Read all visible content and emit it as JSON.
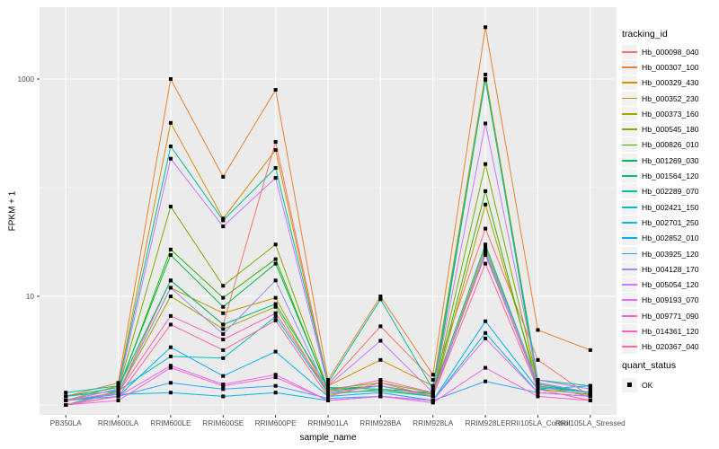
{
  "colors": {
    "panel_bg": "#EBEBEB",
    "grid": "#FFFFFF",
    "key_bg": "#F2F2F2",
    "tick_text": "#4D4D4D",
    "axis_tick": "#333333",
    "point": "#000000"
  },
  "legend": {
    "tracking_id": {
      "title": "tracking_id"
    },
    "quant_status": {
      "title": "quant_status",
      "items": [
        {
          "label": "OK",
          "marker": "black-square",
          "marker_color": "#000000"
        }
      ]
    }
  },
  "chart_data": {
    "type": "line",
    "title": "",
    "xlabel": "sample_name",
    "ylabel": "FPKM + 1",
    "y_scale": "log10",
    "y_tick_values": [
      1000,
      10
    ],
    "y_minor_values": [
      100,
      1
    ],
    "ylim": [
      1,
      3500
    ],
    "grid": true,
    "legend_position": "right",
    "point_marker": "black square (quant_status OK) on every data point",
    "categories": [
      "PB350LA",
      "RRIM600LA",
      "RRIM600LE",
      "RRIM600SE",
      "RRIM600PE",
      "RRIM901LA",
      "RRIM928BA",
      "RRIM928LA",
      "RRIM928LE",
      "RRII105LA_Control",
      "RRII105LA_Stressed"
    ],
    "series": [
      {
        "name": "Hb_000098_040",
        "color": "#F8766D",
        "values": [
          1.1,
          1.3,
          14,
          5.5,
          264,
          1.55,
          5.3,
          1.7,
          42,
          2.6,
          1.2
        ]
      },
      {
        "name": "Hb_000307_100",
        "color": "#EA8331",
        "values": [
          1.2,
          1.6,
          1000,
          126,
          795,
          1.7,
          10,
          1.9,
          3000,
          4.9,
          3.2
        ]
      },
      {
        "name": "Hb_000329_430",
        "color": "#D89000",
        "values": [
          1.1,
          1.5,
          395,
          52,
          222,
          1.5,
          2.6,
          1.5,
          1100,
          1.7,
          1.4
        ]
      },
      {
        "name": "Hb_000352_230",
        "color": "#C09B00",
        "values": [
          1.0,
          1.3,
          12,
          7.0,
          9.7,
          1.3,
          1.5,
          1.2,
          70,
          1.6,
          1.3
        ]
      },
      {
        "name": "Hb_000373_160",
        "color": "#A3A500",
        "values": [
          1.0,
          1.3,
          10,
          5.0,
          8.0,
          1.25,
          1.4,
          1.2,
          28,
          1.5,
          1.2
        ]
      },
      {
        "name": "Hb_000545_180",
        "color": "#7CAE00",
        "values": [
          1.1,
          1.4,
          67,
          12.5,
          30,
          1.4,
          1.6,
          1.3,
          165,
          1.6,
          1.3
        ]
      },
      {
        "name": "Hb_000826_010",
        "color": "#39B600",
        "values": [
          1.0,
          1.35,
          27,
          9.7,
          22,
          1.35,
          1.5,
          1.25,
          93,
          1.4,
          1.25
        ]
      },
      {
        "name": "Hb_001269_030",
        "color": "#00BB4E",
        "values": [
          1.1,
          1.4,
          24,
          8.0,
          20,
          1.4,
          1.5,
          1.2,
          1000,
          1.5,
          1.3
        ]
      },
      {
        "name": "Hb_001564_120",
        "color": "#00BF7D",
        "values": [
          1.2,
          1.45,
          14,
          5.5,
          8.5,
          1.45,
          1.4,
          1.3,
          30,
          1.55,
          1.3
        ]
      },
      {
        "name": "Hb_002289_070",
        "color": "#00C1A3",
        "values": [
          1.3,
          1.5,
          240,
          50,
          152,
          1.6,
          9.4,
          1.4,
          980,
          1.7,
          1.5
        ]
      },
      {
        "name": "Hb_002421_150",
        "color": "#00BFC4",
        "values": [
          1.2,
          1.35,
          2.8,
          2.7,
          6.5,
          1.3,
          1.35,
          1.2,
          25,
          1.45,
          1.3
        ]
      },
      {
        "name": "Hb_002701_250",
        "color": "#00BAE0",
        "values": [
          1.1,
          1.25,
          1.3,
          1.2,
          1.3,
          1.1,
          1.2,
          1.1,
          4.6,
          1.3,
          1.2
        ]
      },
      {
        "name": "Hb_002852_010",
        "color": "#00B0F6",
        "values": [
          1.0,
          1.2,
          3.4,
          1.85,
          3.1,
          1.2,
          1.3,
          1.1,
          5.9,
          1.4,
          1.5
        ]
      },
      {
        "name": "Hb_003925_120",
        "color": "#35A2FF",
        "values": [
          1.1,
          1.2,
          1.6,
          1.4,
          1.5,
          1.15,
          1.2,
          1.1,
          1.65,
          1.3,
          1.2
        ]
      },
      {
        "name": "Hb_004128_170",
        "color": "#9590FF",
        "values": [
          1.0,
          1.3,
          12,
          4.5,
          14,
          1.3,
          1.5,
          1.2,
          26,
          1.6,
          1.3
        ]
      },
      {
        "name": "Hb_005054_120",
        "color": "#C77CFF",
        "values": [
          1.1,
          1.4,
          185,
          44,
          123,
          1.5,
          3.9,
          1.3,
          390,
          1.7,
          1.4
        ]
      },
      {
        "name": "Hb_009193_070",
        "color": "#E76BF3",
        "values": [
          1.0,
          1.2,
          2.3,
          1.55,
          1.9,
          1.1,
          1.2,
          1.1,
          4.1,
          1.3,
          1.2
        ]
      },
      {
        "name": "Hb_009771_090",
        "color": "#FA62DB",
        "values": [
          1.0,
          1.1,
          2.2,
          1.5,
          1.8,
          1.1,
          1.2,
          1.05,
          2.2,
          1.2,
          1.1
        ]
      },
      {
        "name": "Hb_014361_120",
        "color": "#FF62BC",
        "values": [
          1.1,
          1.3,
          6.6,
          4.0,
          7.0,
          1.35,
          1.7,
          1.3,
          24,
          1.5,
          1.2
        ]
      },
      {
        "name": "Hb_020367_040",
        "color": "#FF6A98",
        "values": [
          1.0,
          1.2,
          5.5,
          3.2,
          6.0,
          1.2,
          1.6,
          1.2,
          20,
          1.4,
          1.1
        ]
      }
    ]
  }
}
